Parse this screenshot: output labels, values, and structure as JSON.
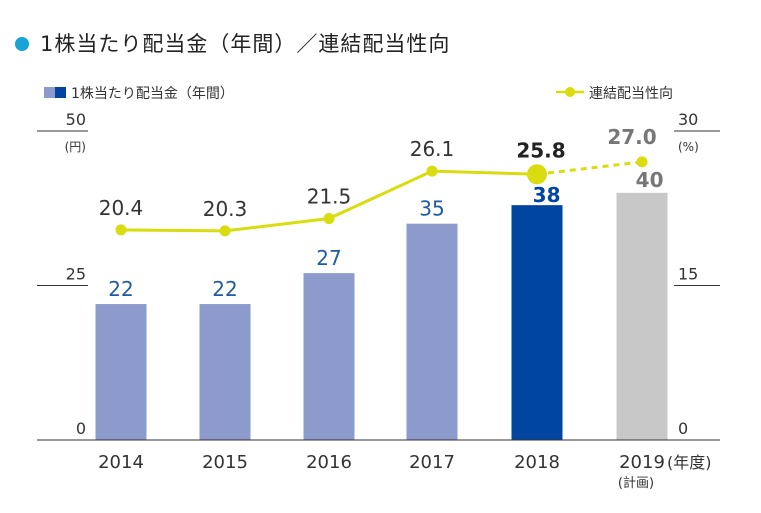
{
  "title": "1株当たり配当金（年間）／連結配当性向",
  "colors": {
    "title_dot": "#1aa3d9",
    "bar_past": "#8d9acc",
    "bar_current": "#0046a0",
    "bar_plan": "#c8c8c8",
    "line": "#d9dc0e",
    "label_bar": "#1f5aa6",
    "label_line": "#333333",
    "label_plan": "#777777",
    "axis": "#333333"
  },
  "chart_data": {
    "type": "bar",
    "title": "1株当たり配当金（年間）／連結配当性向",
    "categories": [
      "2014",
      "2015",
      "2016",
      "2017",
      "2018",
      "2019"
    ],
    "category_suffix": "(年度)",
    "category_note": "(計画)",
    "legend": {
      "bar_label": "1株当たり配当金（年間）",
      "line_label": "連結配当性向"
    },
    "left_axis": {
      "ticks": [
        "50",
        "25",
        "0"
      ],
      "unit": "(円)",
      "ylim": [
        0,
        50
      ]
    },
    "right_axis": {
      "ticks": [
        "30",
        "15",
        "0"
      ],
      "unit": "(%)",
      "ylim": [
        0,
        30
      ]
    },
    "series": [
      {
        "name": "1株当たり配当金（年間）",
        "type": "bar",
        "axis": "left",
        "values": [
          22,
          22,
          27,
          35,
          38,
          40
        ],
        "labels": [
          "22",
          "22",
          "27",
          "35",
          "38",
          "40"
        ]
      },
      {
        "name": "連結配当性向",
        "type": "line",
        "axis": "right",
        "values": [
          20.4,
          20.3,
          21.5,
          26.1,
          25.8,
          27.0
        ],
        "labels": [
          "20.4",
          "20.3",
          "21.5",
          "26.1",
          "25.8",
          "27.0"
        ]
      }
    ],
    "grid": false,
    "legend_position": "top"
  }
}
